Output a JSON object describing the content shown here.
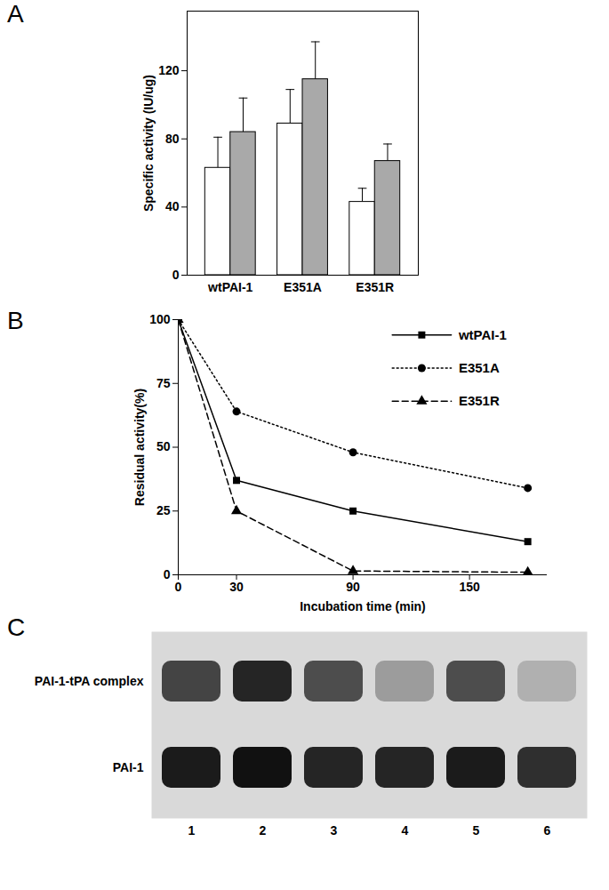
{
  "chart_data": [
    {
      "type": "bar",
      "title": "A",
      "categories": [
        "wtPAI-1",
        "E351A",
        "E351R"
      ],
      "series": [
        {
          "color": "#ffffff",
          "values": [
            63,
            89,
            43
          ],
          "errors": [
            18,
            20,
            8
          ]
        },
        {
          "color": "#a9a9a9",
          "values": [
            84,
            115,
            67
          ],
          "errors": [
            20,
            22,
            10
          ]
        }
      ],
      "y_label": "Specific activity (IU/ug)",
      "ylim": [
        0,
        155
      ],
      "yticks": [
        0,
        40,
        80,
        120
      ]
    },
    {
      "type": "line",
      "title": "B",
      "x": [
        0,
        30,
        90,
        180
      ],
      "series": [
        {
          "name": "wtPAI-1",
          "color": "#000000",
          "marker": "square",
          "line_style": "solid",
          "values": [
            100,
            37,
            25,
            13
          ]
        },
        {
          "name": "E351A",
          "color": "#000000",
          "marker": "circle",
          "line_style": "dotted",
          "values": [
            100,
            64,
            48,
            34
          ]
        },
        {
          "name": "E351R",
          "color": "#000000",
          "marker": "triangle",
          "line_style": "dashed",
          "values": [
            100,
            25,
            1.5,
            1
          ]
        }
      ],
      "x_label": "Incubation time (min)",
      "y_label": "Residual activity(%)",
      "xlim": [
        0,
        190
      ],
      "xticks": [
        0,
        30,
        90,
        150
      ],
      "ylim": [
        0,
        100
      ],
      "yticks": [
        0,
        25,
        50,
        75,
        100
      ],
      "legend": "top-right"
    },
    {
      "type": "gel",
      "title": "C",
      "categories": [
        "1",
        "2",
        "3",
        "4",
        "5",
        "6"
      ],
      "rows": [
        "PAI-1-tPA complex",
        "PAI-1"
      ],
      "cells": [
        [
          0.75,
          0.9,
          0.7,
          0.3,
          0.7,
          0.2
        ],
        [
          0.95,
          1,
          0.9,
          0.9,
          0.95,
          0.85
        ]
      ]
    }
  ]
}
